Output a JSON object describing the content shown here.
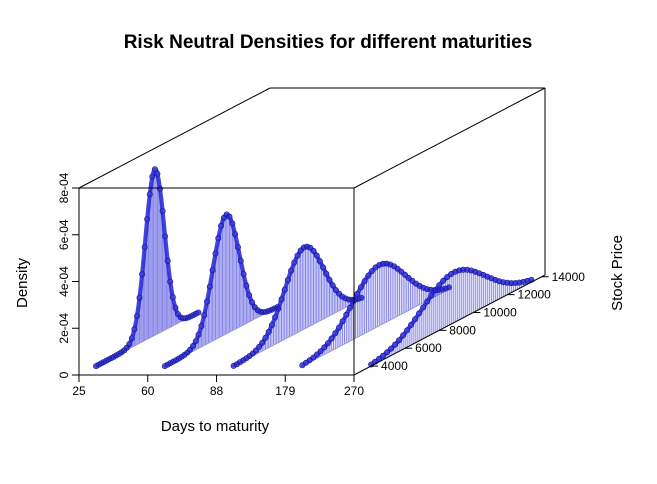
{
  "chart_data": {
    "type": "area",
    "title": "Risk Neutral Densities for different maturities",
    "xlabel": "Days to maturity",
    "ylabel": "Stock Price",
    "zlabel": "Density",
    "x_ticks": [
      "25",
      "60",
      "88",
      "179",
      "270"
    ],
    "y_ticks": [
      "4000",
      "6000",
      "8000",
      "10000",
      "12000",
      "14000"
    ],
    "z_ticks": [
      "0",
      "2e-04",
      "4e-04",
      "6e-04",
      "8e-04"
    ],
    "ylim": [
      3000,
      14200
    ],
    "zlim": [
      0,
      0.0008
    ],
    "color": "#2424d6",
    "series": [
      {
        "x": "25",
        "mode": 7450,
        "sd": 560,
        "peak": 0.00071,
        "range": [
          4000,
          10000
        ]
      },
      {
        "x": "60",
        "mode": 7600,
        "sd": 780,
        "peak": 0.00051,
        "range": [
          4000,
          10600
        ]
      },
      {
        "x": "88",
        "mode": 8150,
        "sd": 1150,
        "peak": 0.00035,
        "range": [
          4000,
          11500
        ]
      },
      {
        "x": "179",
        "mode": 8500,
        "sd": 1550,
        "peak": 0.00026,
        "range": [
          4000,
          12600
        ]
      },
      {
        "x": "270",
        "mode": 8850,
        "sd": 1850,
        "peak": 0.000215,
        "range": [
          4000,
          13400
        ]
      }
    ]
  }
}
